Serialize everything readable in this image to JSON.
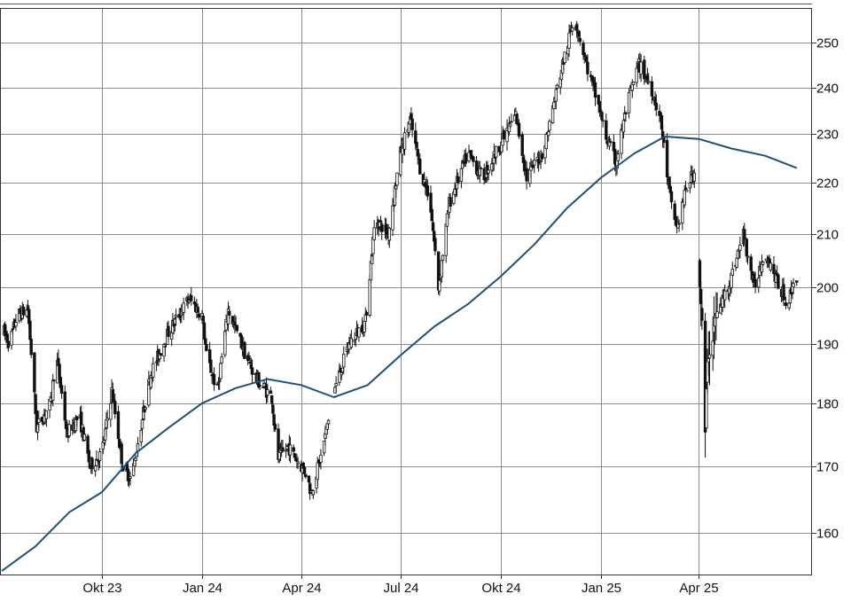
{
  "chart_data": {
    "type": "candlestick",
    "x_ticks": [
      "Okt 23",
      "Jan 24",
      "Apr 24",
      "Jul 24",
      "Okt 24",
      "Jan 25",
      "Apr 25"
    ],
    "y_ticks": [
      160,
      170,
      180,
      190,
      200,
      210,
      220,
      230,
      240,
      250
    ],
    "y_scale": "log",
    "ylim": [
      154,
      258
    ],
    "x_range": [
      "2023-07-01",
      "2025-07-01"
    ],
    "grid": true,
    "colors": {
      "candle": "#111111",
      "moving_average": "#1f4e79",
      "grid": "#8c8c8c"
    },
    "price_waypoints": [
      [
        "2023-07-01",
        193
      ],
      [
        "2023-07-08",
        190
      ],
      [
        "2023-07-15",
        195
      ],
      [
        "2023-07-25",
        196
      ],
      [
        "2023-08-02",
        176
      ],
      [
        "2023-08-15",
        180
      ],
      [
        "2023-08-20",
        188
      ],
      [
        "2023-08-30",
        175
      ],
      [
        "2023-09-10",
        178
      ],
      [
        "2023-09-20",
        170
      ],
      [
        "2023-10-01",
        172
      ],
      [
        "2023-10-10",
        182
      ],
      [
        "2023-10-20",
        170
      ],
      [
        "2023-10-28",
        168
      ],
      [
        "2023-11-15",
        185
      ],
      [
        "2023-12-01",
        192
      ],
      [
        "2023-12-20",
        198
      ],
      [
        "2024-01-01",
        195
      ],
      [
        "2024-01-05",
        188
      ],
      [
        "2024-01-15",
        182
      ],
      [
        "2024-01-25",
        196
      ],
      [
        "2024-02-10",
        188
      ],
      [
        "2024-02-20",
        184
      ],
      [
        "2024-03-05",
        181
      ],
      [
        "2024-03-10",
        171
      ],
      [
        "2024-03-20",
        173
      ],
      [
        "2024-04-05",
        169
      ],
      [
        "2024-04-10",
        166
      ],
      [
        "2024-04-20",
        172
      ],
      [
        "2024-05-01",
        182
      ],
      [
        "2024-05-15",
        190
      ],
      [
        "2024-05-30",
        194
      ],
      [
        "2024-06-08",
        213
      ],
      [
        "2024-06-20",
        210
      ],
      [
        "2024-07-01",
        226
      ],
      [
        "2024-07-10",
        233
      ],
      [
        "2024-07-20",
        222
      ],
      [
        "2024-07-28",
        217
      ],
      [
        "2024-08-05",
        200
      ],
      [
        "2024-08-15",
        216
      ],
      [
        "2024-09-01",
        226
      ],
      [
        "2024-09-15",
        221
      ],
      [
        "2024-10-01",
        228
      ],
      [
        "2024-10-15",
        234
      ],
      [
        "2024-10-25",
        221
      ],
      [
        "2024-11-10",
        227
      ],
      [
        "2024-11-25",
        243
      ],
      [
        "2024-12-08",
        256
      ],
      [
        "2024-12-20",
        244
      ],
      [
        "2024-12-30",
        236
      ],
      [
        "2025-01-05",
        230
      ],
      [
        "2025-01-15",
        224
      ],
      [
        "2025-01-25",
        236
      ],
      [
        "2025-02-05",
        245
      ],
      [
        "2025-02-15",
        241
      ],
      [
        "2025-02-25",
        233
      ],
      [
        "2025-03-05",
        218
      ],
      [
        "2025-03-12",
        211
      ],
      [
        "2025-03-22",
        220
      ],
      [
        "2025-03-28",
        222
      ],
      [
        "2025-04-02",
        203
      ],
      [
        "2025-04-07",
        175
      ],
      [
        "2025-04-10",
        190
      ],
      [
        "2025-04-20",
        196
      ],
      [
        "2025-05-01",
        202
      ],
      [
        "2025-05-12",
        210
      ],
      [
        "2025-05-22",
        200
      ],
      [
        "2025-06-01",
        207
      ],
      [
        "2025-06-12",
        201
      ],
      [
        "2025-06-22",
        197
      ],
      [
        "2025-06-28",
        202
      ]
    ],
    "moving_average_200d": [
      [
        "2023-07-01",
        154.5
      ],
      [
        "2023-08-01",
        158
      ],
      [
        "2023-09-01",
        163
      ],
      [
        "2023-10-01",
        166
      ],
      [
        "2023-11-01",
        172
      ],
      [
        "2023-12-01",
        176
      ],
      [
        "2024-01-01",
        180
      ],
      [
        "2024-02-01",
        182.5
      ],
      [
        "2024-03-01",
        184
      ],
      [
        "2024-04-01",
        183
      ],
      [
        "2024-05-01",
        181
      ],
      [
        "2024-06-01",
        183
      ],
      [
        "2024-07-01",
        188
      ],
      [
        "2024-08-01",
        193
      ],
      [
        "2024-09-01",
        197
      ],
      [
        "2024-10-01",
        202
      ],
      [
        "2024-11-01",
        208
      ],
      [
        "2024-12-01",
        215
      ],
      [
        "2025-01-01",
        221
      ],
      [
        "2025-02-01",
        226
      ],
      [
        "2025-03-01",
        229.5
      ],
      [
        "2025-04-01",
        229
      ],
      [
        "2025-05-01",
        227
      ],
      [
        "2025-06-01",
        225.5
      ],
      [
        "2025-06-30",
        223
      ]
    ]
  }
}
